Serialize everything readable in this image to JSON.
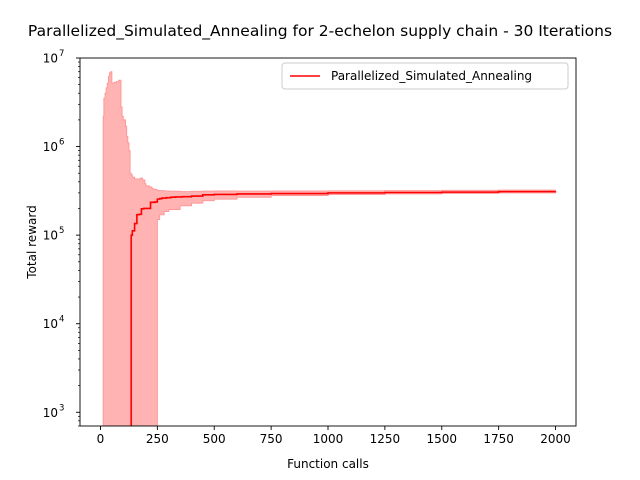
{
  "chart_data": {
    "type": "line",
    "title": "Parallelized_Simulated_Annealing for 2-echelon supply chain - 30 Iterations",
    "xlabel": "Function calls",
    "ylabel": "Total reward",
    "xlim": [
      -90,
      2090
    ],
    "ylim": [
      700,
      10000000
    ],
    "yscale": "log",
    "x_ticks": [
      0,
      250,
      500,
      750,
      1000,
      1250,
      1500,
      1750,
      2000
    ],
    "x_tick_labels": [
      "0",
      "250",
      "500",
      "750",
      "1000",
      "1250",
      "1500",
      "1750",
      "2000"
    ],
    "y_ticks": [
      1000,
      10000,
      100000,
      1000000,
      10000000
    ],
    "y_tick_labels": [
      {
        "base": "10",
        "exp": "3"
      },
      {
        "base": "10",
        "exp": "4"
      },
      {
        "base": "10",
        "exp": "5"
      },
      {
        "base": "10",
        "exp": "6"
      },
      {
        "base": "10",
        "exp": "7"
      }
    ],
    "grid": false,
    "legend": {
      "position": "top-right",
      "entries": [
        "Parallelized_Simulated_Annealing"
      ]
    },
    "colors": {
      "line": "#ff0000",
      "band": "#ff9999"
    },
    "series": [
      {
        "name": "Parallelized_Simulated_Annealing",
        "x": [
          135,
          135,
          140,
          150,
          160,
          170,
          180,
          190,
          200,
          220,
          240,
          250,
          260,
          270,
          290,
          310,
          330,
          360,
          400,
          450,
          500,
          600,
          750,
          1000,
          1250,
          1500,
          1750,
          2000
        ],
        "y": [
          700,
          100000,
          112000,
          135000,
          170000,
          172000,
          198000,
          200000,
          200000,
          235000,
          237000,
          255000,
          258000,
          262000,
          265000,
          268000,
          270000,
          272000,
          276000,
          285000,
          288000,
          292000,
          295000,
          300000,
          303000,
          306000,
          310000,
          312000
        ]
      }
    ],
    "band": {
      "upper": {
        "x": [
          10,
          12,
          15,
          20,
          25,
          30,
          35,
          40,
          45,
          50,
          60,
          70,
          80,
          85,
          90,
          95,
          100,
          110,
          115,
          120,
          125,
          130,
          135,
          140,
          150,
          160,
          175,
          185,
          195,
          200,
          215,
          225,
          230,
          245,
          250,
          260,
          280,
          300,
          350,
          400,
          450,
          500,
          600,
          750,
          1000,
          1250,
          1500,
          1750,
          2000
        ],
        "y": [
          700,
          2200000,
          3500000,
          4000000,
          4600000,
          5200000,
          6200000,
          6800000,
          7000000,
          5200000,
          5300000,
          5400000,
          5600000,
          5600000,
          2800000,
          2200000,
          2000000,
          1700000,
          1300000,
          1100000,
          900000,
          500000,
          480000,
          450000,
          430000,
          430000,
          440000,
          420000,
          380000,
          360000,
          350000,
          340000,
          330000,
          325000,
          320000,
          318000,
          315000,
          313000,
          310000,
          312000,
          314000,
          315000,
          314000,
          315000,
          316000,
          318000,
          320000,
          322000,
          325000
        ]
      },
      "lower": {
        "x": [
          10,
          250,
          250,
          260,
          280,
          300,
          350,
          400,
          450,
          500,
          600,
          750,
          1000,
          1250,
          1500,
          1750,
          2000
        ],
        "y": [
          700,
          700,
          150000,
          170000,
          185000,
          195000,
          215000,
          230000,
          245000,
          255000,
          268000,
          280000,
          288000,
          292000,
          296000,
          300000,
          304000
        ]
      }
    }
  }
}
